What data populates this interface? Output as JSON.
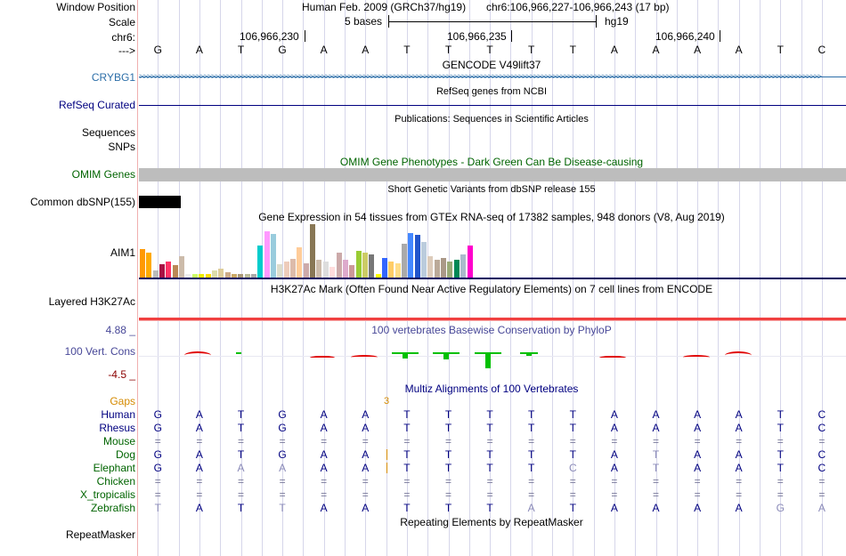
{
  "labels": {
    "window_position": "Window Position",
    "scale": "Scale",
    "chrom": "chr6:",
    "arrow": "--->",
    "gene": "CRYBG1",
    "refseq": "RefSeq Curated",
    "sequences": "Sequences",
    "snps": "SNPs",
    "omim": "OMIM Genes",
    "dbsnp": "Common dbSNP(155)",
    "aim1": "AIM1",
    "h3k27ac": "Layered H3K27Ac",
    "cons_max": "4.88 _",
    "cons": "100 Vert. Cons",
    "cons_min": "-4.5 _",
    "gaps": "Gaps",
    "repeatmasker": "RepeatMasker"
  },
  "header": {
    "assembly": "Human Feb. 2009 (GRCh37/hg19)",
    "position": "chr6:106,966,227-106,966,243 (17 bp)",
    "scale_text": "5 bases",
    "scale_db": "hg19",
    "coord1": "106,966,230",
    "coord2": "106,966,235",
    "coord3": "106,966,240"
  },
  "track_titles": {
    "gencode": "GENCODE V49lift37",
    "refseq": "RefSeq genes from NCBI",
    "publications": "Publications: Sequences in Scientific Articles",
    "omim": "OMIM Gene Phenotypes - Dark Green Can Be Disease-causing",
    "dbsnp": "Short Genetic Variants from dbSNP release 155",
    "gtex": "Gene Expression in 54 tissues from GTEx RNA-seq of 17382 samples, 948 donors (V8, Aug 2019)",
    "h3k27ac": "H3K27Ac Mark (Often Found Near Active Regulatory Elements) on 7 cell lines from ENCODE",
    "phylop": "100 vertebrates Basewise Conservation by PhyloP",
    "multiz": "Multiz Alignments of 100 Vertebrates",
    "repeatmasker": "Repeating Elements by RepeatMasker"
  },
  "reference_bases": [
    "G",
    "A",
    "T",
    "G",
    "A",
    "A",
    "T",
    "T",
    "T",
    "T",
    "T",
    "A",
    "A",
    "A",
    "A",
    "T",
    "C"
  ],
  "gap_value": "3",
  "alignments": [
    {
      "species": "Human",
      "color": "#000080",
      "bases": [
        "G",
        "A",
        "T",
        "G",
        "A",
        "A",
        "T",
        "T",
        "T",
        "T",
        "T",
        "A",
        "A",
        "A",
        "A",
        "T",
        "C"
      ]
    },
    {
      "species": "Rhesus",
      "color": "#000080",
      "bases": [
        "G",
        "A",
        "T",
        "G",
        "A",
        "A",
        "T",
        "T",
        "T",
        "T",
        "T",
        "A",
        "A",
        "A",
        "A",
        "T",
        "C"
      ]
    },
    {
      "species": "Mouse",
      "color": "#006400",
      "bases": [
        "=",
        "=",
        "=",
        "=",
        "=",
        "=",
        "=",
        "=",
        "=",
        "=",
        "=",
        "=",
        "=",
        "=",
        "=",
        "=",
        "="
      ]
    },
    {
      "species": "Dog",
      "color": "#006400",
      "bases": [
        "G",
        "A",
        "T",
        "G",
        "A",
        "A",
        "T",
        "T",
        "T",
        "T",
        "T",
        "A",
        "T",
        "A",
        "A",
        "T",
        "C"
      ]
    },
    {
      "species": "Elephant",
      "color": "#006400",
      "bases": [
        "G",
        "A",
        "A",
        "A",
        "A",
        "A",
        "T",
        "T",
        "T",
        "T",
        "C",
        "A",
        "T",
        "A",
        "A",
        "T",
        "C"
      ]
    },
    {
      "species": "Chicken",
      "color": "#006400",
      "bases": [
        "=",
        "=",
        "=",
        "=",
        "=",
        "=",
        "=",
        "=",
        "=",
        "=",
        "=",
        "=",
        "=",
        "=",
        "=",
        "=",
        "="
      ]
    },
    {
      "species": "X_tropicalis",
      "color": "#006400",
      "bases": [
        "=",
        "=",
        "=",
        "=",
        "=",
        "=",
        "=",
        "=",
        "=",
        "=",
        "=",
        "=",
        "=",
        "=",
        "=",
        "=",
        "="
      ]
    },
    {
      "species": "Zebrafish",
      "color": "#006400",
      "bases": [
        "T",
        "A",
        "T",
        "T",
        "A",
        "A",
        "T",
        "T",
        "T",
        "A",
        "T",
        "A",
        "A",
        "A",
        "A",
        "G",
        "A"
      ]
    }
  ],
  "colors": {
    "track_label_blue": "#000080",
    "gene_blue": "#2c6ea8",
    "omim_green": "#006400",
    "phylop_blue": "#484898",
    "gaps_orange": "#d58a00",
    "cons_positive": "#00c000",
    "cons_negative": "#e00000"
  }
}
